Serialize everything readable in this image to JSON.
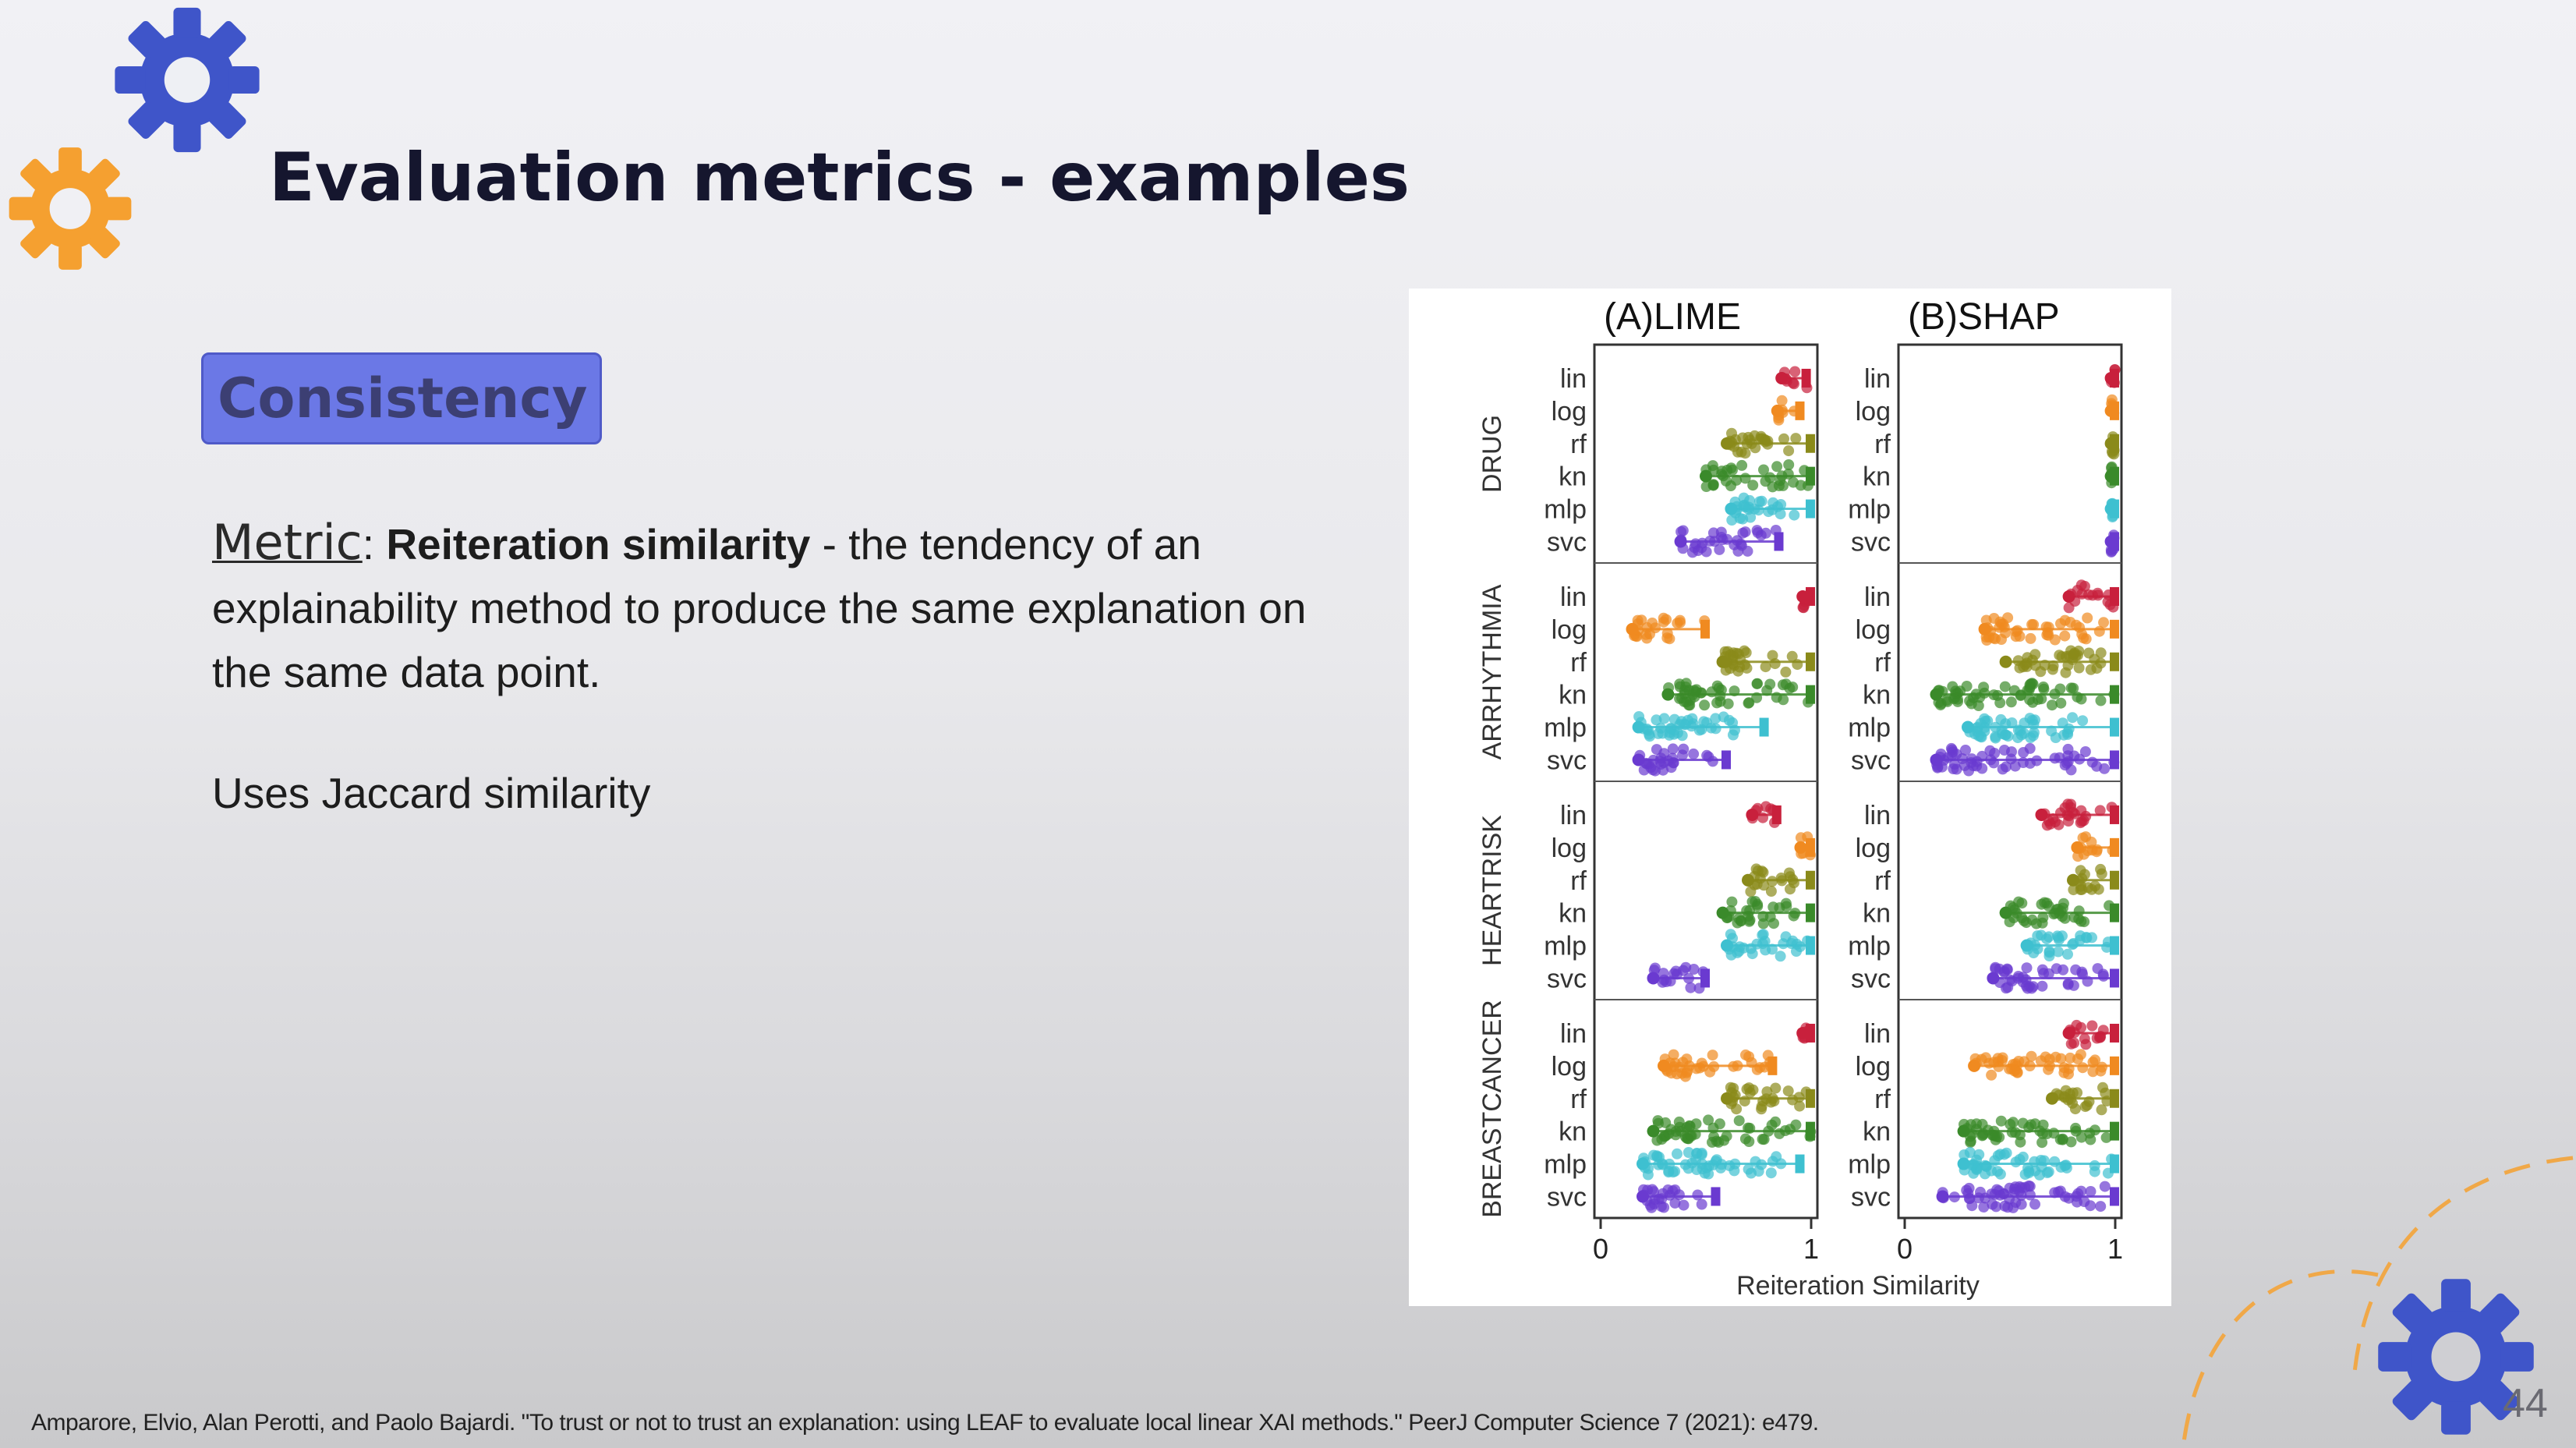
{
  "slide": {
    "title": "Evaluation metrics - examples",
    "badge": "Consistency",
    "metric_label": "Metric",
    "metric_colon": ":",
    "metric_name": "Reiteration similarity",
    "metric_description": " - the tendency of an explainability method to produce the same explanation on the same data point.",
    "uses_text": "Uses Jaccard similarity",
    "citation": "Amparore, Elvio, Alan Perotti, and Paolo Bajardi. \"To trust or not to trust an explanation: using LEAF to evaluate local linear XAI methods.\" PeerJ Computer Science 7 (2021): e479.",
    "page_number": "44",
    "accent_colors": {
      "gear_blue": "#3f55c9",
      "gear_orange": "#f5a030",
      "badge": "#6b78e6"
    },
    "icons": [
      "gear-icon-blue",
      "gear-icon-orange",
      "gear-icon-bottom"
    ]
  },
  "chart_data": {
    "type": "scatter",
    "panels": [
      {
        "label": "(A)LIME"
      },
      {
        "label": "(B)SHAP"
      }
    ],
    "groups": [
      "DRUG",
      "ARRHYTHMIA",
      "HEARTRISK",
      "BREASTCANCER"
    ],
    "models": [
      "lin",
      "log",
      "rf",
      "kn",
      "mlp",
      "svc"
    ],
    "model_colors": {
      "lin": "#c8203c",
      "log": "#f08a20",
      "rf": "#8a8a1a",
      "kn": "#3a8a2a",
      "mlp": "#3ec0d0",
      "svc": "#6a3ad0"
    },
    "xlabel": "Reiteration Similarity",
    "xlim": [
      0,
      1
    ],
    "xticks": [
      "0",
      "1"
    ],
    "grid": false,
    "ranges": {
      "(A)LIME": {
        "DRUG": [
          [
            0.86,
            0.98
          ],
          [
            0.84,
            0.95
          ],
          [
            0.6,
            1.0
          ],
          [
            0.5,
            1.0
          ],
          [
            0.62,
            1.0
          ],
          [
            0.38,
            0.85
          ]
        ],
        "ARRHYTHMIA": [
          [
            0.96,
            1.0
          ],
          [
            0.15,
            0.5
          ],
          [
            0.58,
            1.0
          ],
          [
            0.32,
            1.0
          ],
          [
            0.18,
            0.78
          ],
          [
            0.18,
            0.6
          ]
        ],
        "HEARTRISK": [
          [
            0.72,
            0.84
          ],
          [
            0.95,
            1.0
          ],
          [
            0.7,
            1.0
          ],
          [
            0.58,
            1.0
          ],
          [
            0.6,
            1.0
          ],
          [
            0.25,
            0.5
          ]
        ],
        "BREASTCANCER": [
          [
            0.96,
            1.0
          ],
          [
            0.3,
            0.82
          ],
          [
            0.6,
            1.0
          ],
          [
            0.25,
            1.0
          ],
          [
            0.2,
            0.95
          ],
          [
            0.2,
            0.55
          ]
        ]
      },
      "(B)SHAP": {
        "DRUG": [
          [
            0.98,
            1.0
          ],
          [
            0.98,
            1.0
          ],
          [
            0.98,
            1.0
          ],
          [
            0.98,
            1.0
          ],
          [
            0.98,
            1.0
          ],
          [
            0.98,
            1.0
          ]
        ],
        "ARRHYTHMIA": [
          [
            0.78,
            1.0
          ],
          [
            0.38,
            1.0
          ],
          [
            0.48,
            1.0
          ],
          [
            0.15,
            1.0
          ],
          [
            0.3,
            1.0
          ],
          [
            0.15,
            1.0
          ]
        ],
        "HEARTRISK": [
          [
            0.65,
            1.0
          ],
          [
            0.82,
            1.0
          ],
          [
            0.8,
            1.0
          ],
          [
            0.48,
            1.0
          ],
          [
            0.58,
            1.0
          ],
          [
            0.42,
            1.0
          ]
        ],
        "BREASTCANCER": [
          [
            0.78,
            1.0
          ],
          [
            0.33,
            1.0
          ],
          [
            0.7,
            1.0
          ],
          [
            0.28,
            1.0
          ],
          [
            0.28,
            1.0
          ],
          [
            0.18,
            1.0
          ]
        ]
      }
    }
  }
}
